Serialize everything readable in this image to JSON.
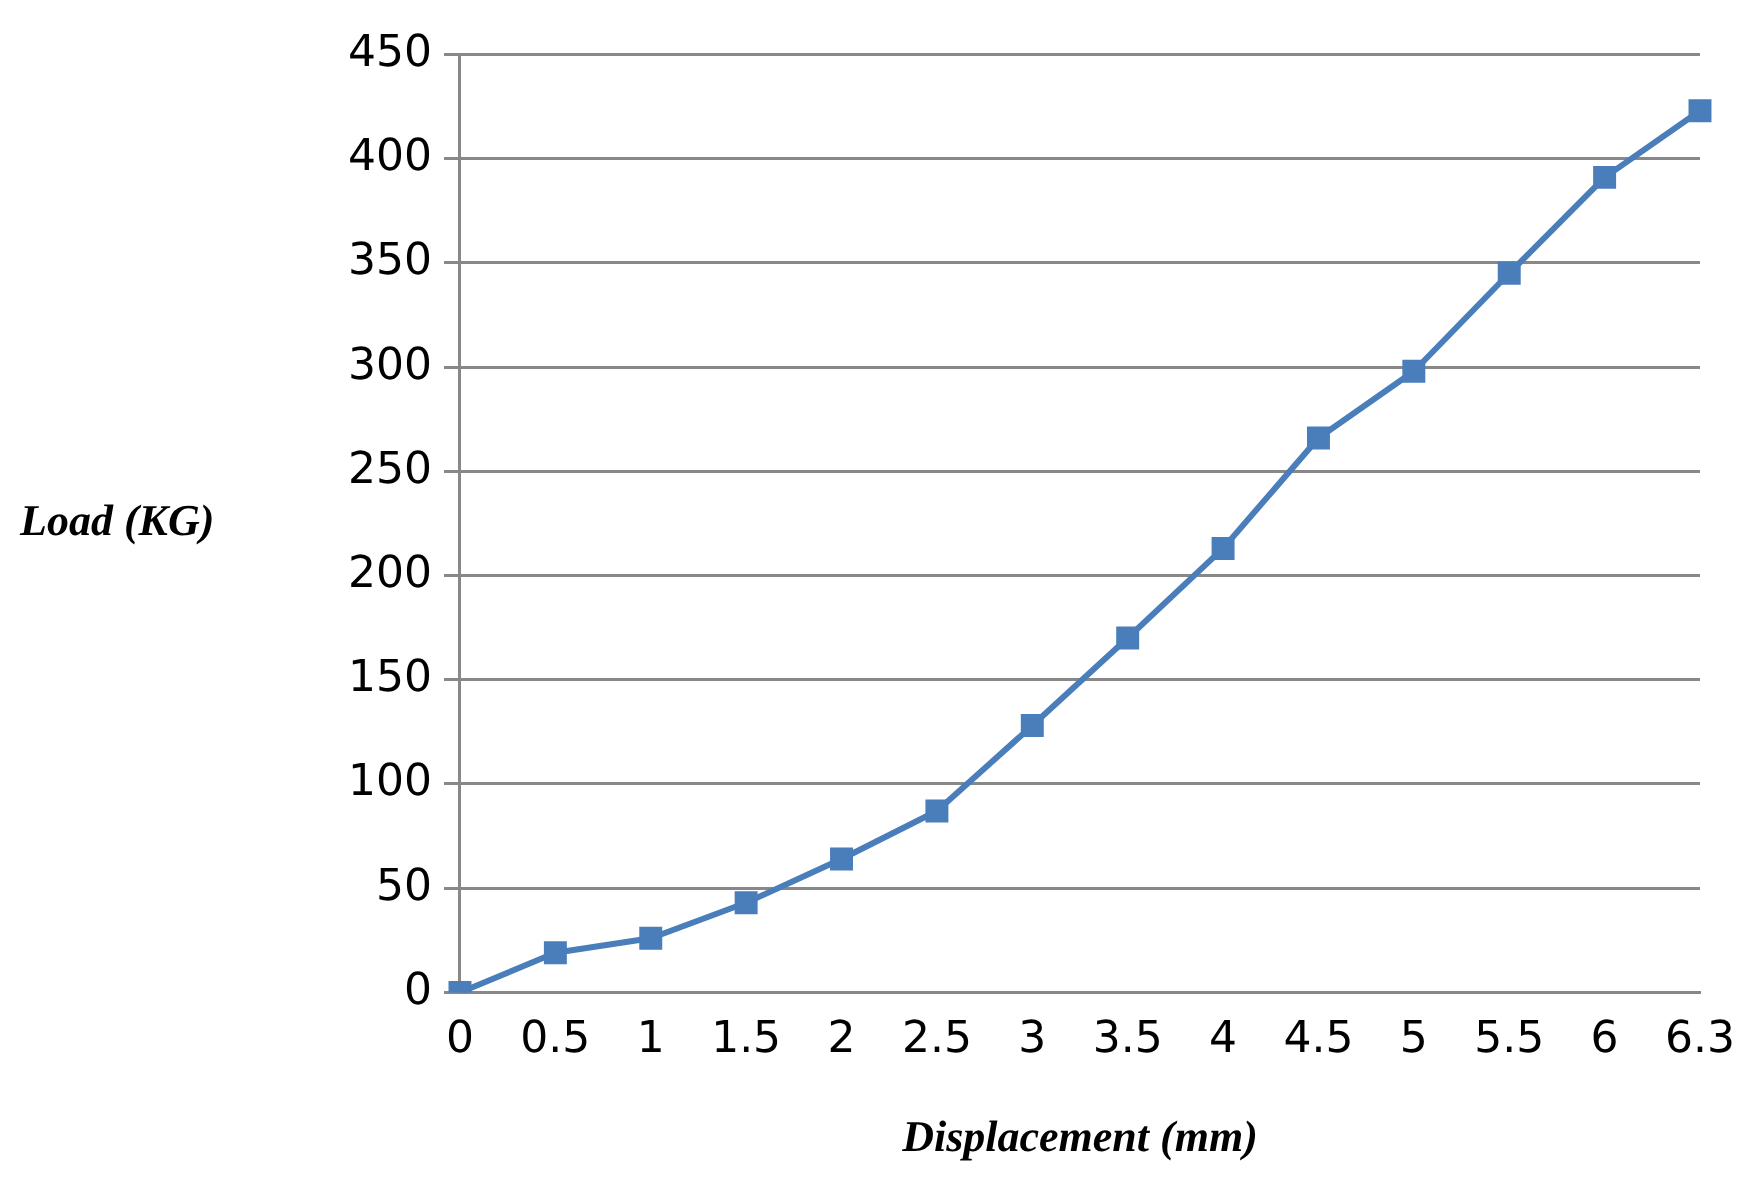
{
  "chart_data": {
    "type": "line",
    "xlabel": "Displacement (mm)",
    "ylabel": "Load (KG)",
    "categories": [
      "0",
      "0.5",
      "1",
      "1.5",
      "2",
      "2.5",
      "3",
      "3.5",
      "4",
      "4.5",
      "5",
      "5.5",
      "6",
      "6.3"
    ],
    "series": [
      {
        "color": "#4a7ebb",
        "values": [
          0,
          19,
          26,
          43,
          64,
          87,
          128,
          170,
          213,
          266,
          298,
          345,
          391,
          423
        ]
      }
    ],
    "ylim": [
      0,
      450
    ],
    "yticks": [
      0,
      50,
      100,
      150,
      200,
      250,
      300,
      350,
      400,
      450
    ],
    "grid": "y",
    "legend": false,
    "marker": "square",
    "line_style": "solid"
  }
}
